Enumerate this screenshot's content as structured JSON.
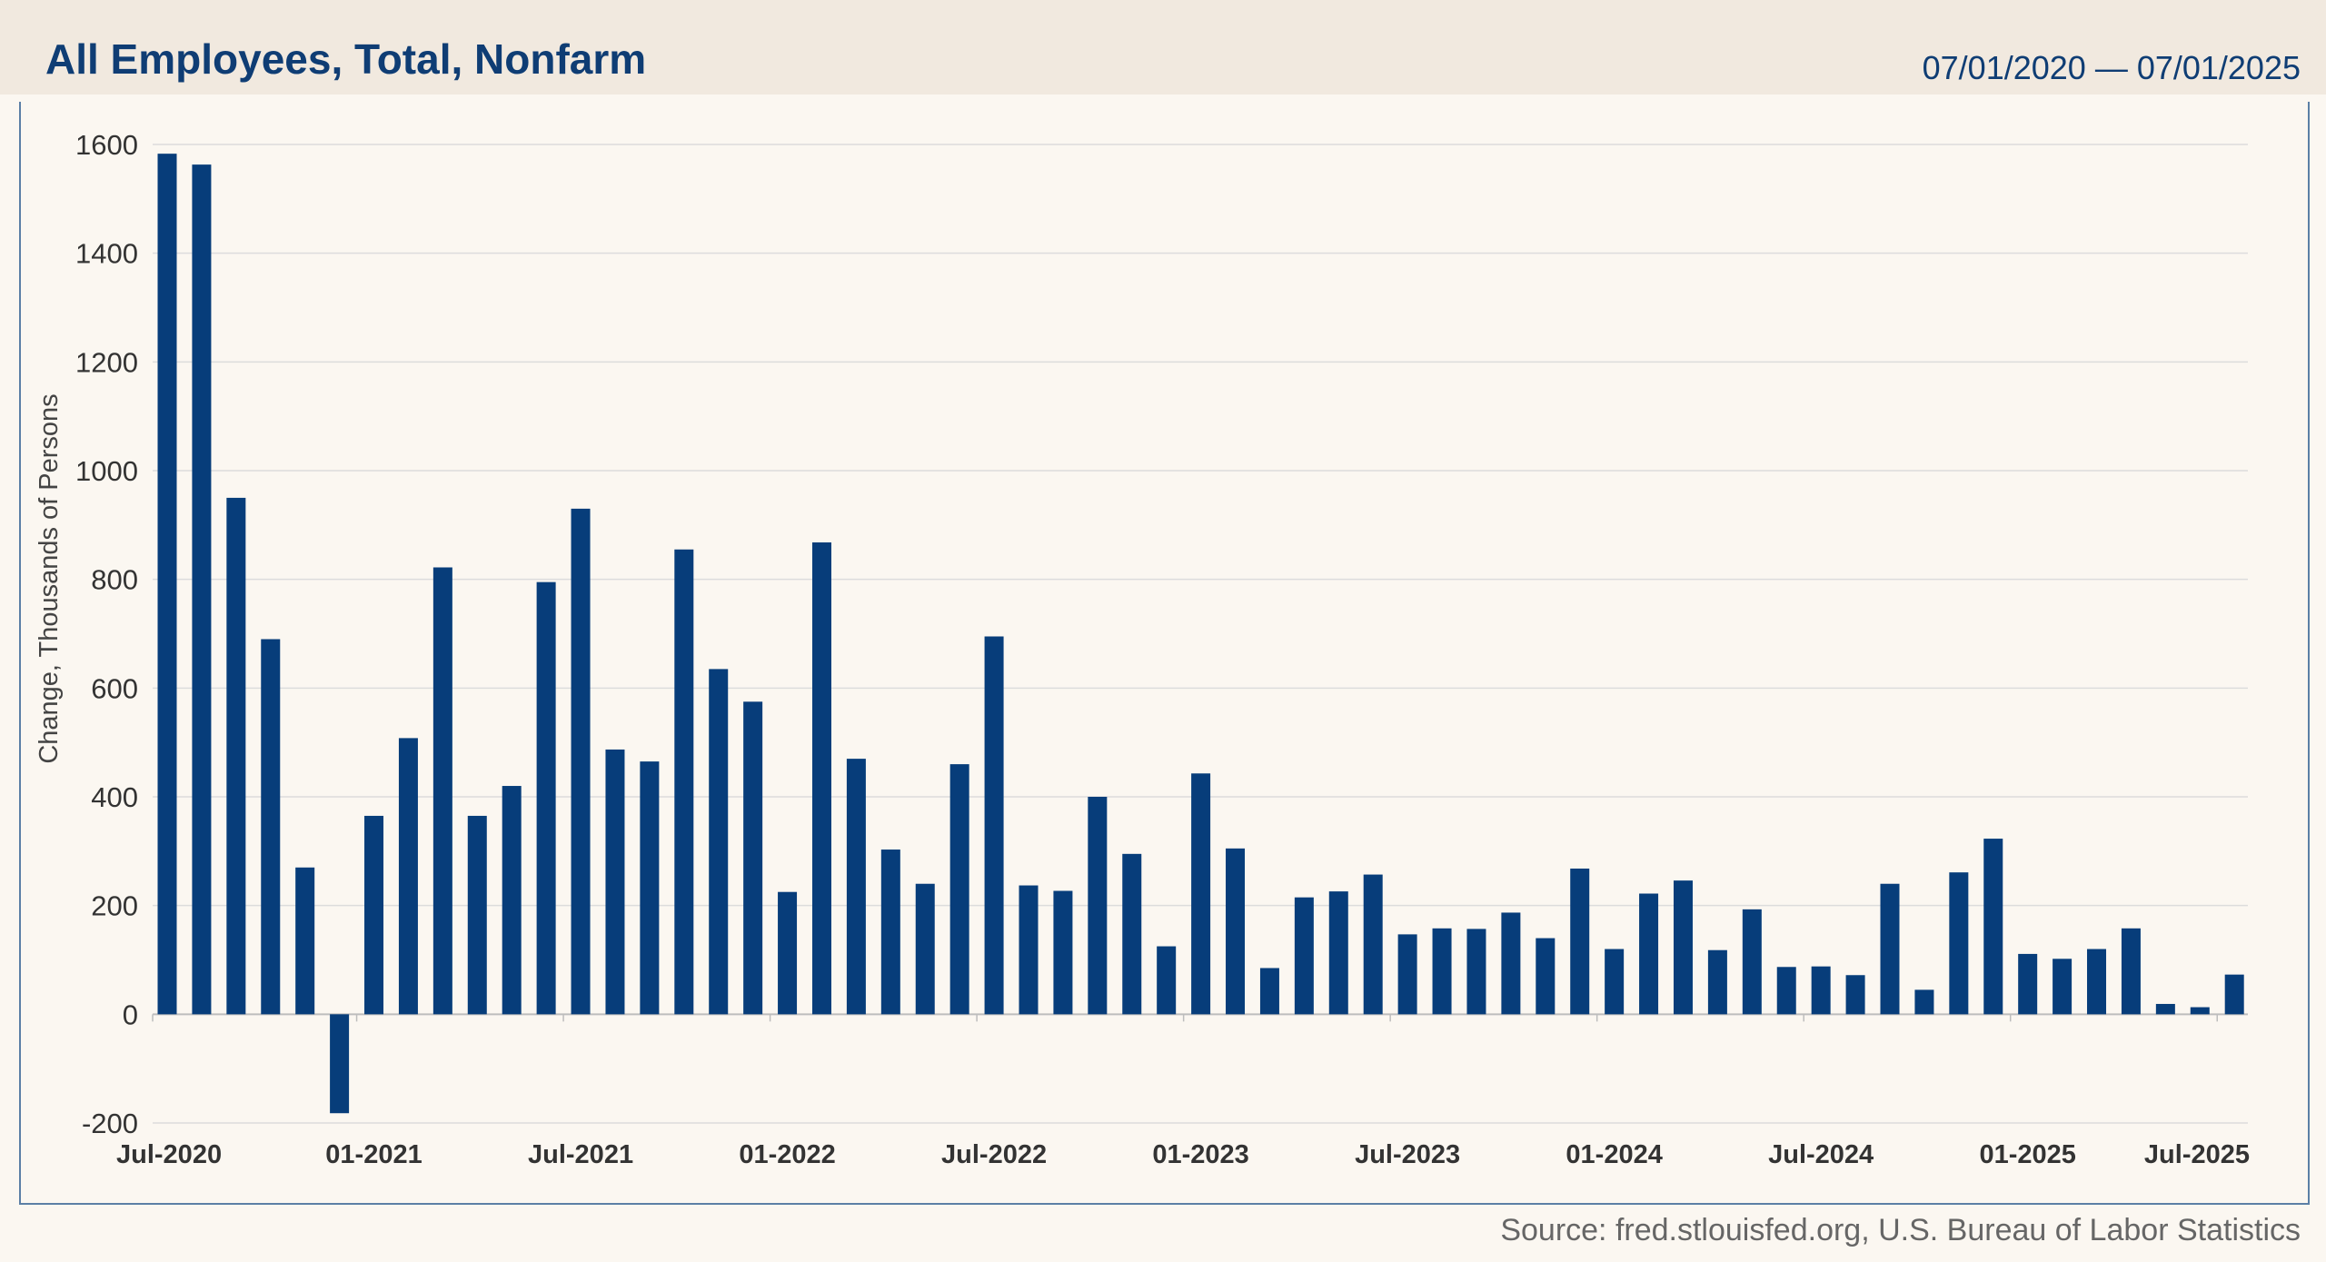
{
  "header": {
    "title": "All Employees, Total, Nonfarm",
    "date_range": "07/01/2020 — 07/01/2025"
  },
  "footer": {
    "source": "Source: fred.stlouisfed.org, U.S. Bureau of Labor Statistics"
  },
  "colors": {
    "bar": "#073d7a",
    "header_bg": "#f1e9df",
    "page_bg": "#fbf7f1",
    "title": "#0f3d74",
    "grid": "#dcdcdc"
  },
  "chart_data": {
    "type": "bar",
    "ylabel": "Change, Thousands of Persons",
    "ylim": [
      -200,
      1600
    ],
    "yticks": [
      1600,
      1400,
      1200,
      1000,
      800,
      600,
      400,
      200,
      0,
      -200
    ],
    "grid": true,
    "x_tick_labels": [
      "Jul-2020",
      "01-2021",
      "Jul-2021",
      "01-2022",
      "Jul-2022",
      "01-2023",
      "Jul-2023",
      "01-2024",
      "Jul-2024",
      "01-2025",
      "Jul-2025"
    ],
    "categories": [
      "2020-07",
      "2020-08",
      "2020-09",
      "2020-10",
      "2020-11",
      "2020-12",
      "2021-01",
      "2021-02",
      "2021-03",
      "2021-04",
      "2021-05",
      "2021-06",
      "2021-07",
      "2021-08",
      "2021-09",
      "2021-10",
      "2021-11",
      "2021-12",
      "2022-01",
      "2022-02",
      "2022-03",
      "2022-04",
      "2022-05",
      "2022-06",
      "2022-07",
      "2022-08",
      "2022-09",
      "2022-10",
      "2022-11",
      "2022-12",
      "2023-01",
      "2023-02",
      "2023-03",
      "2023-04",
      "2023-05",
      "2023-06",
      "2023-07",
      "2023-08",
      "2023-09",
      "2023-10",
      "2023-11",
      "2023-12",
      "2024-01",
      "2024-02",
      "2024-03",
      "2024-04",
      "2024-05",
      "2024-06",
      "2024-07",
      "2024-08",
      "2024-09",
      "2024-10",
      "2024-11",
      "2024-12",
      "2025-01",
      "2025-02",
      "2025-03",
      "2025-04",
      "2025-05",
      "2025-06",
      "2025-07"
    ],
    "values": [
      1583,
      1563,
      950,
      690,
      270,
      -182,
      365,
      508,
      822,
      365,
      420,
      795,
      930,
      487,
      465,
      855,
      635,
      575,
      225,
      868,
      470,
      303,
      240,
      460,
      695,
      237,
      227,
      400,
      295,
      125,
      443,
      305,
      85,
      215,
      226,
      257,
      147,
      158,
      157,
      187,
      140,
      268,
      120,
      222,
      246,
      118,
      193,
      87,
      88,
      72,
      240,
      45,
      261,
      323,
      111,
      102,
      120,
      158,
      19,
      13,
      73
    ]
  }
}
